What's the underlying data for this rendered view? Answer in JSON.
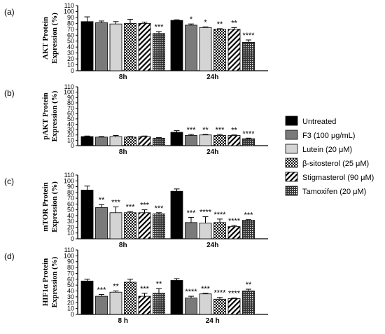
{
  "legend": [
    {
      "label": "Untreated",
      "pattern": "solid-black"
    },
    {
      "label": "F3 (100  μg/mL)",
      "pattern": "solid-gray"
    },
    {
      "label": "Lutein (20  μM)",
      "pattern": "solid-lightgray"
    },
    {
      "label": "β-sitosterol (25  μM)",
      "pattern": "checker"
    },
    {
      "label": "Stigmasterol (90  μM)",
      "pattern": "diagonal-stripes"
    },
    {
      "label": "Tamoxifen (20  μM)",
      "pattern": "crosshatch"
    }
  ],
  "colors": {
    "black": "#000000",
    "gray": "#7a7a7a",
    "lightgray": "#d4d4d4",
    "white": "#ffffff"
  },
  "chart_data": [
    {
      "type": "bar",
      "panel": "(a)",
      "ylabel": "AKT Protein Expression (%)",
      "ylim": [
        0,
        110
      ],
      "ticks": [
        0,
        10,
        20,
        30,
        40,
        50,
        60,
        70,
        80,
        90,
        100,
        110
      ],
      "categories": [
        "8h",
        "24h"
      ],
      "series": [
        {
          "name": "Untreated",
          "values": [
            83,
            85
          ],
          "errors": [
            8,
            1
          ],
          "sig": [
            "",
            ""
          ]
        },
        {
          "name": "F3 (100  μg/mL)",
          "values": [
            81,
            77
          ],
          "errors": [
            3,
            2
          ],
          "sig": [
            "",
            "*"
          ]
        },
        {
          "name": "Lutein (20  μM)",
          "values": [
            79,
            73
          ],
          "errors": [
            4,
            1
          ],
          "sig": [
            "",
            "*"
          ]
        },
        {
          "name": "β-sitosterol (25  μM)",
          "values": [
            80,
            70
          ],
          "errors": [
            7,
            1
          ],
          "sig": [
            "",
            "**"
          ]
        },
        {
          "name": "Stigmasterol (90  μM)",
          "values": [
            80,
            70
          ],
          "errors": [
            2,
            3
          ],
          "sig": [
            "",
            "**"
          ]
        },
        {
          "name": "Tamoxifen (20  μM)",
          "values": [
            63,
            48
          ],
          "errors": [
            3,
            4
          ],
          "sig": [
            "***",
            "****"
          ]
        }
      ]
    },
    {
      "type": "bar",
      "panel": "(b)",
      "ylabel": "pAKT Protein Expression (%)",
      "ylim": [
        0,
        110
      ],
      "ticks": [
        0,
        10,
        20,
        30,
        40,
        50,
        60,
        70,
        80,
        90,
        100,
        110
      ],
      "categories": [
        "8h",
        "24h"
      ],
      "series": [
        {
          "name": "Untreated",
          "values": [
            17,
            25
          ],
          "errors": [
            1,
            3
          ],
          "sig": [
            "",
            ""
          ]
        },
        {
          "name": "F3 (100  μg/mL)",
          "values": [
            16,
            19
          ],
          "errors": [
            1,
            2
          ],
          "sig": [
            "",
            "***"
          ]
        },
        {
          "name": "Lutein (20  μM)",
          "values": [
            17,
            20
          ],
          "errors": [
            2,
            1
          ],
          "sig": [
            "",
            "**"
          ]
        },
        {
          "name": "β-sitosterol (25  μM)",
          "values": [
            16,
            19
          ],
          "errors": [
            1,
            2
          ],
          "sig": [
            "",
            "***"
          ]
        },
        {
          "name": "Stigmasterol (90  μM)",
          "values": [
            17,
            19
          ],
          "errors": [
            1,
            1
          ],
          "sig": [
            "",
            "**"
          ]
        },
        {
          "name": "Tamoxifen (20  μM)",
          "values": [
            14,
            13
          ],
          "errors": [
            1,
            1
          ],
          "sig": [
            "",
            "****"
          ]
        }
      ]
    },
    {
      "type": "bar",
      "panel": "(c)",
      "ylabel": "mTOR Protein Expression (%)",
      "ylim": [
        0,
        110
      ],
      "ticks": [
        0,
        10,
        20,
        30,
        40,
        50,
        60,
        70,
        80,
        90,
        100,
        110
      ],
      "categories": [
        "8h",
        "24h"
      ],
      "series": [
        {
          "name": "Untreated",
          "values": [
            84,
            82
          ],
          "errors": [
            7,
            4
          ],
          "sig": [
            "",
            ""
          ]
        },
        {
          "name": "F3 (100  μg/mL)",
          "values": [
            54,
            28
          ],
          "errors": [
            5,
            9
          ],
          "sig": [
            "**",
            "***"
          ]
        },
        {
          "name": "Lutein (20  μM)",
          "values": [
            45,
            27
          ],
          "errors": [
            10,
            11
          ],
          "sig": [
            "***",
            "****"
          ]
        },
        {
          "name": "β-sitosterol (25  μM)",
          "values": [
            45,
            28
          ],
          "errors": [
            2,
            6
          ],
          "sig": [
            "***",
            "****"
          ]
        },
        {
          "name": "Stigmasterol (90  μM)",
          "values": [
            45,
            21
          ],
          "errors": [
            5,
            2
          ],
          "sig": [
            "***",
            "****"
          ]
        },
        {
          "name": "Tamoxifen (20  μM)",
          "values": [
            43,
            32
          ],
          "errors": [
            2,
            1
          ],
          "sig": [
            "***",
            "***"
          ]
        }
      ]
    },
    {
      "type": "bar",
      "panel": "(d)",
      "ylabel": "HIF1α Protein Expression (%)",
      "ylim": [
        0,
        110
      ],
      "ticks": [
        0,
        10,
        20,
        30,
        40,
        50,
        60,
        70,
        80,
        90,
        100,
        110
      ],
      "categories": [
        "8 h",
        "24 h"
      ],
      "series": [
        {
          "name": "Untreated",
          "values": [
            57,
            58
          ],
          "errors": [
            3,
            3
          ],
          "sig": [
            "",
            ""
          ]
        },
        {
          "name": "F3 (100  μg/mL)",
          "values": [
            31,
            28
          ],
          "errors": [
            3,
            3
          ],
          "sig": [
            "***",
            "****"
          ]
        },
        {
          "name": "Lutein (20  μM)",
          "values": [
            38,
            35
          ],
          "errors": [
            2,
            1
          ],
          "sig": [
            "**",
            "***"
          ]
        },
        {
          "name": "β-sitosterol (25  μM)",
          "values": [
            55,
            26
          ],
          "errors": [
            5,
            3
          ],
          "sig": [
            "",
            "****"
          ]
        },
        {
          "name": "Stigmasterol (90  μM)",
          "values": [
            31,
            27
          ],
          "errors": [
            5,
            1
          ],
          "sig": [
            "***",
            "****"
          ]
        },
        {
          "name": "Tamoxifen (20  μM)",
          "values": [
            36,
            40
          ],
          "errors": [
            8,
            3
          ],
          "sig": [
            "**",
            "**"
          ]
        }
      ]
    }
  ]
}
